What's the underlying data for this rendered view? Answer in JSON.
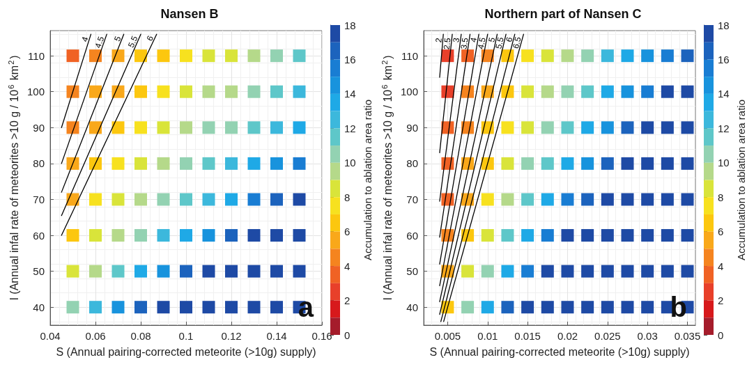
{
  "chart_data": [
    {
      "type": "scatter",
      "title": "Nansen B",
      "xlabel": "S (Annual pairing-corrected meteorite (>10g) supply)",
      "ylabel": "I (Annual infal rate of meteorites >10 g / 10$^{6}$ km$^{2}$)",
      "clabel": "Accumulation to ablation area ratio",
      "annotations": [
        "a"
      ],
      "x": [
        0.05,
        0.06,
        0.07,
        0.08,
        0.09,
        0.1,
        0.11,
        0.12,
        0.13,
        0.14,
        0.15
      ],
      "xlim": [
        0.04,
        0.16
      ],
      "xticks": [
        0.04,
        0.06,
        0.08,
        0.1,
        0.12,
        0.14,
        0.16
      ],
      "ylim": [
        35,
        117
      ],
      "yticks": [
        40,
        50,
        60,
        70,
        80,
        90,
        100,
        110
      ],
      "clim": [
        0,
        18
      ],
      "cticks": [
        0,
        2,
        4,
        6,
        8,
        10,
        12,
        14,
        16,
        18
      ],
      "grid": true,
      "legend": false,
      "marker": "square",
      "series": [
        {
          "values": [
            110,
            110,
            110,
            110,
            110,
            110,
            110,
            110,
            110,
            110,
            110
          ],
          "colors": [
            "#f06224",
            "#f5841f",
            "#f9a81a",
            "#fcc70f",
            "#fcc70f",
            "#f7e11f",
            "#d9e43a",
            "#d9e43a",
            "#b5d98a",
            "#93d2b2",
            "#5ec7c9"
          ]
        },
        {
          "values": [
            100,
            100,
            100,
            100,
            100,
            100,
            100,
            100,
            100,
            100,
            100
          ],
          "colors": [
            "#f5841f",
            "#f9a81a",
            "#f9a81a",
            "#fcc70f",
            "#f7e11f",
            "#d9e43a",
            "#b5d98a",
            "#b5d98a",
            "#93d2b2",
            "#5ec7c9",
            "#3cb8dc"
          ]
        },
        {
          "values": [
            90,
            90,
            90,
            90,
            90,
            90,
            90,
            90,
            90,
            90,
            90
          ],
          "colors": [
            "#f5841f",
            "#f9a81a",
            "#fcc70f",
            "#f7e11f",
            "#d9e43a",
            "#b5d98a",
            "#93d2b2",
            "#93d2b2",
            "#5ec7c9",
            "#3cb8dc",
            "#1fa9e6"
          ]
        },
        {
          "values": [
            80,
            80,
            80,
            80,
            80,
            80,
            80,
            80,
            80,
            80,
            80
          ],
          "colors": [
            "#f9a81a",
            "#fcc70f",
            "#f7e11f",
            "#d9e43a",
            "#b5d98a",
            "#93d2b2",
            "#5ec7c9",
            "#3cb8dc",
            "#1fa9e6",
            "#1893dd",
            "#197dd3"
          ]
        },
        {
          "values": [
            70,
            70,
            70,
            70,
            70,
            70,
            70,
            70,
            70,
            70,
            70
          ],
          "colors": [
            "#f9a81a",
            "#f7e11f",
            "#d9e43a",
            "#b5d98a",
            "#93d2b2",
            "#5ec7c9",
            "#3cb8dc",
            "#1fa9e6",
            "#197dd3",
            "#1c63bd",
            "#1e4aa5"
          ]
        },
        {
          "values": [
            60,
            60,
            60,
            60,
            60,
            60,
            60,
            60,
            60,
            60,
            60
          ],
          "colors": [
            "#fcc70f",
            "#d9e43a",
            "#b5d98a",
            "#93d2b2",
            "#3cb8dc",
            "#1fa9e6",
            "#1893dd",
            "#1c63bd",
            "#1e4aa5",
            "#1e4aa5",
            "#1e4aa5"
          ]
        },
        {
          "values": [
            50,
            50,
            50,
            50,
            50,
            50,
            50,
            50,
            50,
            50,
            50
          ],
          "colors": [
            "#d9e43a",
            "#b5d98a",
            "#5ec7c9",
            "#1fa9e6",
            "#1893dd",
            "#1c63bd",
            "#1e4aa5",
            "#1e4aa5",
            "#1e4aa5",
            "#1e4aa5",
            "#1e4aa5"
          ]
        },
        {
          "values": [
            40,
            40,
            40,
            40,
            40,
            40,
            40,
            40,
            40,
            40,
            40
          ],
          "colors": [
            "#93d2b2",
            "#3cb8dc",
            "#1893dd",
            "#1c63bd",
            "#1e4aa5",
            "#1e4aa5",
            "#1e4aa5",
            "#1e4aa5",
            "#1e4aa5",
            "#1e4aa5",
            "#1e4aa5"
          ]
        },
        {
          "type": "line",
          "name": "4",
          "color": "#000000",
          "marker": "none",
          "x": [
            0.045,
            0.058
          ],
          "values": [
            90,
            116
          ]
        },
        {
          "type": "line",
          "name": "4.5",
          "color": "#000000",
          "marker": "none",
          "x": [
            0.045,
            0.065
          ],
          "values": [
            80,
            116
          ]
        },
        {
          "type": "line",
          "name": "5",
          "color": "#000000",
          "marker": "none",
          "x": [
            0.045,
            0.0725
          ],
          "values": [
            72,
            116
          ]
        },
        {
          "type": "line",
          "name": "5.5",
          "color": "#000000",
          "marker": "none",
          "x": [
            0.045,
            0.08
          ],
          "values": [
            65.5,
            116
          ]
        },
        {
          "type": "line",
          "name": "6",
          "color": "#000000",
          "marker": "none",
          "x": [
            0.045,
            0.087
          ],
          "values": [
            60,
            116
          ]
        }
      ]
    },
    {
      "type": "scatter",
      "title": "Northern part of Nansen C",
      "xlabel": "S (Annual pairing-corrected meteorite (>10g) supply)",
      "ylabel": "I (Annual infal rate of meteorites >10 g / 10$^{6}$ km$^{2}$)",
      "clabel": "Accumulation to ablation area ratio",
      "annotations": [
        "b"
      ],
      "x": [
        0.005,
        0.0075,
        0.01,
        0.0125,
        0.015,
        0.0175,
        0.02,
        0.0225,
        0.025,
        0.0275,
        0.03,
        0.0325,
        0.035
      ],
      "xlim": [
        0.002,
        0.036
      ],
      "xticks": [
        0.005,
        0.01,
        0.015,
        0.02,
        0.025,
        0.03,
        0.035
      ],
      "ylim": [
        35,
        117
      ],
      "yticks": [
        40,
        50,
        60,
        70,
        80,
        90,
        100,
        110
      ],
      "clim": [
        0,
        18
      ],
      "cticks": [
        0,
        2,
        4,
        6,
        8,
        10,
        12,
        14,
        16,
        18
      ],
      "grid": true,
      "legend": false,
      "marker": "square",
      "series": [
        {
          "values": [
            110,
            110,
            110,
            110,
            110,
            110,
            110,
            110,
            110,
            110,
            110,
            110,
            110
          ],
          "colors": [
            "#e8402a",
            "#f06224",
            "#f5841f",
            "#fcc70f",
            "#f7e11f",
            "#d9e43a",
            "#b5d98a",
            "#93d2b2",
            "#3cb8dc",
            "#1fa9e6",
            "#1893dd",
            "#197dd3",
            "#1c63bd"
          ]
        },
        {
          "values": [
            100,
            100,
            100,
            100,
            100,
            100,
            100,
            100,
            100,
            100,
            100,
            100,
            100
          ],
          "colors": [
            "#e8402a",
            "#f5841f",
            "#f9a81a",
            "#fcc70f",
            "#d9e43a",
            "#b5d98a",
            "#93d2b2",
            "#5ec7c9",
            "#1fa9e6",
            "#1893dd",
            "#197dd3",
            "#1e4aa5",
            "#1e4aa5"
          ]
        },
        {
          "values": [
            90,
            90,
            90,
            90,
            90,
            90,
            90,
            90,
            90,
            90,
            90,
            90,
            90
          ],
          "colors": [
            "#f06224",
            "#f5841f",
            "#fcc70f",
            "#f7e11f",
            "#d9e43a",
            "#93d2b2",
            "#5ec7c9",
            "#1fa9e6",
            "#1893dd",
            "#1c63bd",
            "#1e4aa5",
            "#1e4aa5",
            "#1e4aa5"
          ]
        },
        {
          "values": [
            80,
            80,
            80,
            80,
            80,
            80,
            80,
            80,
            80,
            80,
            80,
            80,
            80
          ],
          "colors": [
            "#f06224",
            "#f9a81a",
            "#fcc70f",
            "#d9e43a",
            "#93d2b2",
            "#5ec7c9",
            "#1fa9e6",
            "#1893dd",
            "#1c63bd",
            "#1e4aa5",
            "#1e4aa5",
            "#1e4aa5",
            "#1e4aa5"
          ]
        },
        {
          "values": [
            70,
            70,
            70,
            70,
            70,
            70,
            70,
            70,
            70,
            70,
            70,
            70,
            70
          ],
          "colors": [
            "#f06224",
            "#f9a81a",
            "#f7e11f",
            "#b5d98a",
            "#5ec7c9",
            "#1fa9e6",
            "#197dd3",
            "#1c63bd",
            "#1e4aa5",
            "#1e4aa5",
            "#1e4aa5",
            "#1e4aa5",
            "#1e4aa5"
          ]
        },
        {
          "values": [
            60,
            60,
            60,
            60,
            60,
            60,
            60,
            60,
            60,
            60,
            60,
            60,
            60
          ],
          "colors": [
            "#f5841f",
            "#fcc70f",
            "#d9e43a",
            "#5ec7c9",
            "#1fa9e6",
            "#197dd3",
            "#1e4aa5",
            "#1e4aa5",
            "#1e4aa5",
            "#1e4aa5",
            "#1e4aa5",
            "#1e4aa5",
            "#1e4aa5"
          ]
        },
        {
          "values": [
            50,
            50,
            50,
            50,
            50,
            50,
            50,
            50,
            50,
            50,
            50,
            50,
            50
          ],
          "colors": [
            "#f9a81a",
            "#d9e43a",
            "#93d2b2",
            "#1fa9e6",
            "#197dd3",
            "#1e4aa5",
            "#1e4aa5",
            "#1e4aa5",
            "#1e4aa5",
            "#1e4aa5",
            "#1e4aa5",
            "#1e4aa5",
            "#1e4aa5"
          ]
        },
        {
          "values": [
            40,
            40,
            40,
            40,
            40,
            40,
            40,
            40,
            40,
            40,
            40,
            40,
            40
          ],
          "colors": [
            "#fcc70f",
            "#93d2b2",
            "#1fa9e6",
            "#1c63bd",
            "#1e4aa5",
            "#1e4aa5",
            "#1e4aa5",
            "#1e4aa5",
            "#1e4aa5",
            "#1e4aa5",
            "#1e4aa5",
            "#1e4aa5",
            "#1e4aa5"
          ]
        },
        {
          "type": "line",
          "name": "2",
          "color": "#000000",
          "marker": "none",
          "x": [
            0.004,
            0.00446
          ],
          "values": [
            104,
            116
          ]
        },
        {
          "type": "line",
          "name": "2.5",
          "color": "#000000",
          "marker": "none",
          "x": [
            0.004,
            0.00558
          ],
          "values": [
            83,
            116
          ]
        },
        {
          "type": "line",
          "name": "3",
          "color": "#000000",
          "marker": "none",
          "x": [
            0.004,
            0.0067
          ],
          "values": [
            69.5,
            116
          ]
        },
        {
          "type": "line",
          "name": "3.5",
          "color": "#000000",
          "marker": "none",
          "x": [
            0.004,
            0.0078
          ],
          "values": [
            59.5,
            116
          ]
        },
        {
          "type": "line",
          "name": "4",
          "color": "#000000",
          "marker": "none",
          "x": [
            0.004,
            0.0089
          ],
          "values": [
            52,
            116
          ]
        },
        {
          "type": "line",
          "name": "4.5",
          "color": "#000000",
          "marker": "none",
          "x": [
            0.004,
            0.01
          ],
          "values": [
            46,
            116
          ]
        },
        {
          "type": "line",
          "name": "5",
          "color": "#000000",
          "marker": "none",
          "x": [
            0.004,
            0.0112
          ],
          "values": [
            41.5,
            116
          ]
        },
        {
          "type": "line",
          "name": "5.5",
          "color": "#000000",
          "marker": "none",
          "x": [
            0.004,
            0.0123
          ],
          "values": [
            38,
            116
          ]
        },
        {
          "type": "line",
          "name": "6",
          "color": "#000000",
          "marker": "none",
          "x": [
            0.00415,
            0.0134
          ],
          "values": [
            36,
            116
          ]
        },
        {
          "type": "line",
          "name": "6.5",
          "color": "#000000",
          "marker": "none",
          "x": [
            0.0045,
            0.0145
          ],
          "values": [
            36,
            116
          ]
        }
      ]
    }
  ]
}
